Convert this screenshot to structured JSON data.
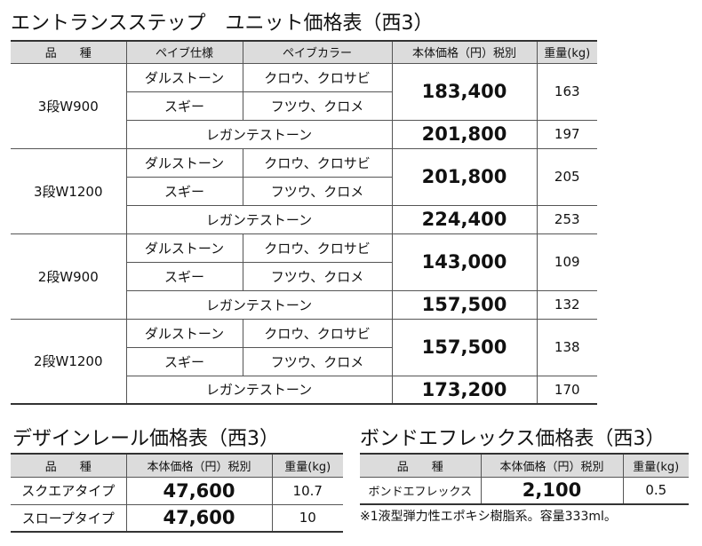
{
  "main": {
    "title": "エントランスステップ　ユニット価格表（西3）",
    "header": [
      "品　　種",
      "ペイブ仕様",
      "ペイブカラー",
      "本体価格（円）税別",
      "重量(kg)"
    ],
    "groups": [
      {
        "name": "3段W900",
        "rows": [
          [
            "ダルストーン",
            "クロウ、クロサビ"
          ],
          [
            "スギー",
            "フツウ、クロメ"
          ]
        ],
        "price": "183,400",
        "weight": "163",
        "special": "レガンテストーン",
        "special_price": "201,800",
        "special_weight": "197"
      },
      {
        "name": "3段W1200",
        "rows": [
          [
            "ダルストーン",
            "クロウ、クロサビ"
          ],
          [
            "スギー",
            "フツウ、クロメ"
          ]
        ],
        "price": "201,800",
        "weight": "205",
        "special": "レガンテストーン",
        "special_price": "224,400",
        "special_weight": "253"
      },
      {
        "name": "2段W900",
        "rows": [
          [
            "ダルストーン",
            "クロウ、クロサビ"
          ],
          [
            "スギー",
            "フツウ、クロメ"
          ]
        ],
        "price": "143,000",
        "weight": "109",
        "special": "レガンテストーン",
        "special_price": "157,500",
        "special_weight": "132"
      },
      {
        "name": "2段W1200",
        "rows": [
          [
            "ダルストーン",
            "クロウ、クロサビ"
          ],
          [
            "スギー",
            "フツウ、クロメ"
          ]
        ],
        "price": "157,500",
        "weight": "138",
        "special": "レガンテストーン",
        "special_price": "173,200",
        "special_weight": "170"
      }
    ]
  },
  "rail": {
    "title": "デザインレール価格表（西3）",
    "header": [
      "品　　種",
      "本体価格（円）税別",
      "重量(kg)"
    ],
    "rows": [
      [
        "スクエアタイプ",
        "47,600",
        "10.7"
      ],
      [
        "スロープタイプ",
        "47,600",
        "10"
      ]
    ]
  },
  "bond": {
    "title": "ボンドエフレックス価格表（西3）",
    "header": [
      "品　　種",
      "本体価格（円）税別",
      "重量(kg)"
    ],
    "rows": [
      [
        "ボンドエフレックス",
        "2,100",
        "0.5"
      ]
    ],
    "note": "※1液型弾力性エポキシ樹脂系。容量333ml。"
  }
}
